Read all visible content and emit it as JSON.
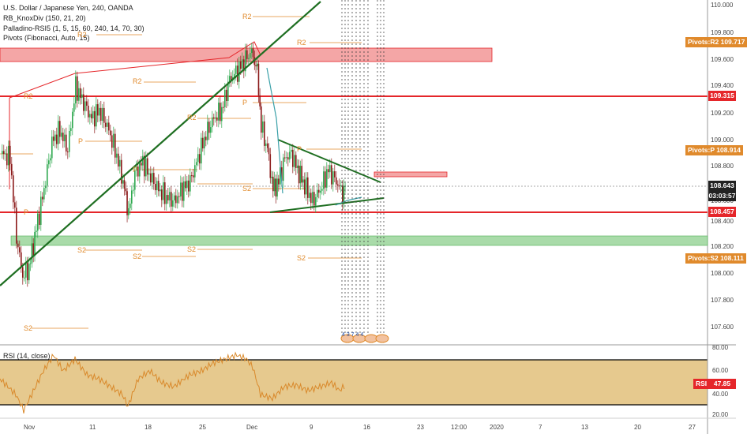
{
  "legend": {
    "title": "U.S. Dollar / Japanese Yen, 240, OANDA",
    "ind1": "RB_KnoxDiv (150, 21, 20)",
    "ind2": "Palladino-RSI5 (1, 5, 15, 60, 240, 14, 70, 30)",
    "ind3": "Pivots (Fibonacci, Auto, 15)"
  },
  "price_axis": [
    "110.000",
    "109.800",
    "109.600",
    "109.400",
    "109.200",
    "109.000",
    "108.800",
    "108.600",
    "108.400",
    "108.200",
    "108.000",
    "107.800",
    "107.600"
  ],
  "pivot_tags": [
    {
      "label": "Pivots:R2",
      "value": "109.717",
      "color": "#e08a2c"
    },
    {
      "label": "Pivots:P",
      "value": "108.914",
      "color": "#e08a2c"
    },
    {
      "label": "Pivots:S2",
      "value": "108.111",
      "color": "#e08a2c"
    }
  ],
  "price_tags": [
    {
      "value": "109.315",
      "color": "#e5262a"
    },
    {
      "value": "108.643",
      "color": "#222222"
    },
    {
      "value": "03:03:57",
      "color": "#222222"
    },
    {
      "value": "108.457",
      "color": "#e5262a"
    }
  ],
  "pivot_texts": [
    "R2",
    "R2",
    "R2",
    "R2",
    "R2",
    "R2",
    "P",
    "P",
    "P",
    "P",
    "P",
    "S2",
    "S2",
    "S2",
    "S2",
    "S2",
    "S2"
  ],
  "x_axis": [
    "Nov",
    "11",
    "18",
    "25",
    "Dec",
    "9",
    "16",
    "23",
    "12:00",
    "2020",
    "7",
    "13",
    "20",
    "27"
  ],
  "countdown_digits": "4 3 7 4 4",
  "rsi": {
    "label": "RSI (14, close)",
    "axis": [
      "80.00",
      "60.00",
      "40.00",
      "20.00"
    ],
    "tag_label": "RSI",
    "tag_value": "47.85",
    "band_color": "#e6c98e",
    "line_color": "#d9892b"
  },
  "colors": {
    "up": "#2fa84f",
    "down": "#8b1a1a",
    "support": "#e5262a",
    "trend": "#1f6f22",
    "pivot": "#e08a2c"
  }
}
